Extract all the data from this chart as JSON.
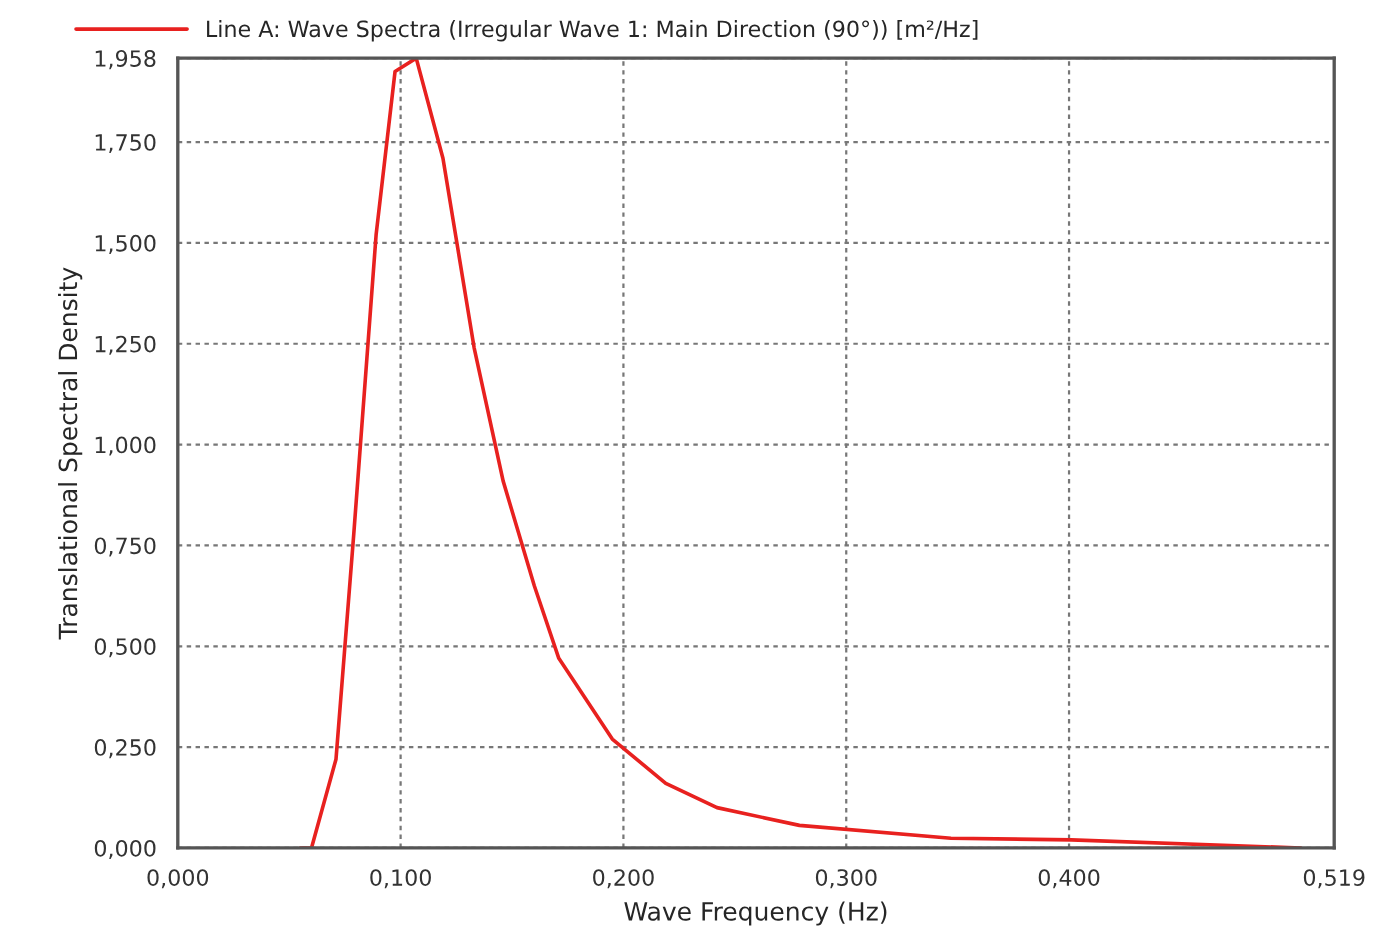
{
  "chart_data": {
    "type": "line",
    "xlabel": "Wave Frequency (Hz)",
    "ylabel": "Translational Spectral Density",
    "x": [
      0.055,
      0.06,
      0.071,
      0.079,
      0.089,
      0.0975,
      0.107,
      0.119,
      0.133,
      0.146,
      0.16,
      0.171,
      0.195,
      0.219,
      0.242,
      0.279,
      0.347,
      0.401,
      0.504
    ],
    "series": [
      {
        "name": "Line A: Wave Spectra (Irregular Wave 1: Main Direction (90°)) [m²/Hz]",
        "color": "#e8211f",
        "values": [
          0.0,
          0.0,
          0.22,
          0.78,
          1.52,
          1.925,
          1.958,
          1.71,
          1.24,
          0.91,
          0.65,
          0.47,
          0.27,
          0.16,
          0.1,
          0.056,
          0.024,
          0.02,
          0.0
        ]
      }
    ],
    "xlim": [
      0,
      0.519
    ],
    "ylim": [
      0,
      1.958
    ],
    "xticks": [
      {
        "value": 0,
        "label": "0,000"
      },
      {
        "value": 0.1,
        "label": "0,100"
      },
      {
        "value": 0.2,
        "label": "0,200"
      },
      {
        "value": 0.3,
        "label": "0,300"
      },
      {
        "value": 0.4,
        "label": "0,400"
      },
      {
        "value": 0.519,
        "label": "0,519"
      }
    ],
    "yticks": [
      {
        "value": 0,
        "label": "0,000"
      },
      {
        "value": 0.25,
        "label": "0,250"
      },
      {
        "value": 0.5,
        "label": "0,500"
      },
      {
        "value": 0.75,
        "label": "0,750"
      },
      {
        "value": 1.0,
        "label": "1,000"
      },
      {
        "value": 1.25,
        "label": "1,250"
      },
      {
        "value": 1.5,
        "label": "1,500"
      },
      {
        "value": 1.75,
        "label": "1,750"
      },
      {
        "value": 1.958,
        "label": "1,958"
      }
    ],
    "grid": true,
    "legend": "top left",
    "marker": "none",
    "line_style": "solid"
  }
}
